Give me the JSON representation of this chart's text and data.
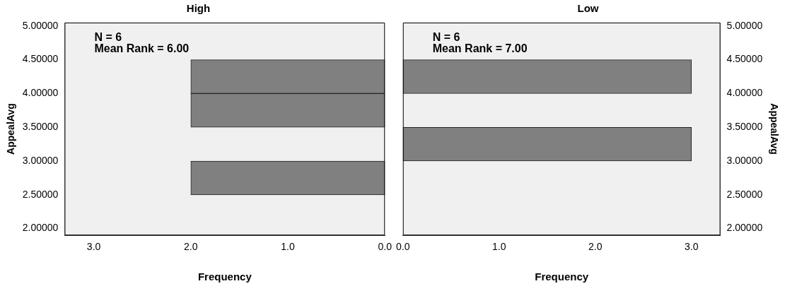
{
  "chart_data": [
    {
      "type": "histogram",
      "orientation": "horizontal",
      "title": "High",
      "xlabel": "Frequency",
      "ylabel": "AppealAvg",
      "bins": [
        2.5,
        3.0,
        3.5,
        4.0,
        4.5
      ],
      "values": [
        2,
        0,
        2,
        2
      ],
      "color": "#808080",
      "xlim": [
        3.3,
        0
      ],
      "xticks": [
        {
          "value": 3,
          "label": "3.0"
        },
        {
          "value": 2,
          "label": "2.0"
        },
        {
          "value": 1,
          "label": "1.0"
        },
        {
          "value": 0,
          "label": "0.0"
        }
      ],
      "ylim": [
        1.9,
        5.05
      ],
      "yticks": [
        {
          "value": 2,
          "label": "2.00000"
        },
        {
          "value": 2.5,
          "label": "2.50000"
        },
        {
          "value": 3,
          "label": "3.00000"
        },
        {
          "value": 3.5,
          "label": "3.50000"
        },
        {
          "value": 4,
          "label": "4.00000"
        },
        {
          "value": 4.5,
          "label": "4.50000"
        },
        {
          "value": 5,
          "label": "5.00000"
        }
      ],
      "annotations": [
        "N = 6",
        "Mean Rank = 6.00"
      ]
    },
    {
      "type": "histogram",
      "orientation": "horizontal",
      "title": "Low",
      "xlabel": "Frequency",
      "ylabel": "AppealAvg",
      "bins": [
        2.5,
        3.0,
        3.5,
        4.0,
        4.5
      ],
      "values": [
        0,
        3,
        0,
        3
      ],
      "color": "#808080",
      "xlim": [
        0,
        3.3
      ],
      "xticks": [
        {
          "value": 0,
          "label": "0.0"
        },
        {
          "value": 1,
          "label": "1.0"
        },
        {
          "value": 2,
          "label": "2.0"
        },
        {
          "value": 3,
          "label": "3.0"
        }
      ],
      "ylim": [
        1.9,
        5.05
      ],
      "yticks": [
        {
          "value": 2,
          "label": "2.00000"
        },
        {
          "value": 2.5,
          "label": "2.50000"
        },
        {
          "value": 3,
          "label": "3.00000"
        },
        {
          "value": 3.5,
          "label": "3.50000"
        },
        {
          "value": 4,
          "label": "4.00000"
        },
        {
          "value": 4.5,
          "label": "4.50000"
        },
        {
          "value": 5,
          "label": "5.00000"
        }
      ],
      "annotations": [
        "N = 6",
        "Mean Rank = 7.00"
      ]
    }
  ]
}
